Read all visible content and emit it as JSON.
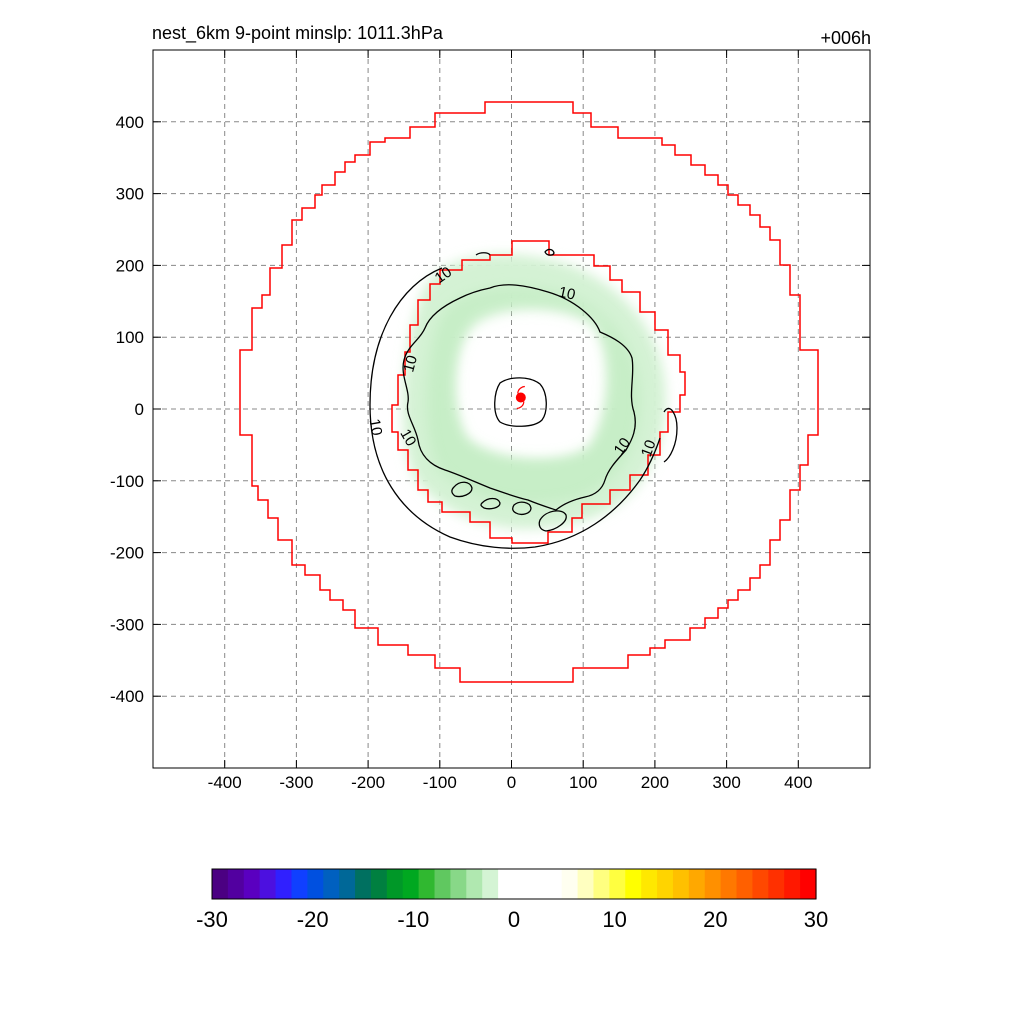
{
  "title_left": "nest_6km  9-point minslp: 1011.3hPa",
  "title_right": "+006h",
  "chart_data": {
    "type": "contour",
    "xlim": [
      -500,
      500
    ],
    "ylim": [
      -500,
      500
    ],
    "x_ticks": [
      "-400",
      "-300",
      "-200",
      "-100",
      "0",
      "100",
      "200",
      "300",
      "400"
    ],
    "y_ticks": [
      "400",
      "300",
      "200",
      "100",
      "0",
      "-100",
      "-200",
      "-300",
      "-400"
    ],
    "grid": true,
    "storm_center": {
      "x": 13,
      "y": 16
    },
    "contour_labels": [
      "10",
      "10",
      "10",
      "10",
      "10",
      "10",
      "10"
    ],
    "colorbar": {
      "ticks": [
        "-30",
        "-20",
        "-10",
        "0",
        "10",
        "20",
        "30"
      ],
      "min": -30,
      "max": 30,
      "colors": [
        "#4b0082",
        "#5200a0",
        "#5a00c0",
        "#4c10e0",
        "#3020ff",
        "#1040ff",
        "#0050e0",
        "#0060c0",
        "#006898",
        "#007060",
        "#008040",
        "#009828",
        "#00a820",
        "#30b830",
        "#60c860",
        "#88d888",
        "#b0e8b0",
        "#d4f4d4",
        "#ffffff",
        "#ffffff",
        "#ffffff",
        "#ffffff",
        "#fffff0",
        "#ffffc0",
        "#ffff80",
        "#ffff40",
        "#ffff00",
        "#ffe800",
        "#ffd400",
        "#ffc000",
        "#ffa800",
        "#ff9000",
        "#ff7800",
        "#ff6000",
        "#ff4800",
        "#ff3000",
        "#ff1800",
        "#ff0000"
      ]
    }
  }
}
